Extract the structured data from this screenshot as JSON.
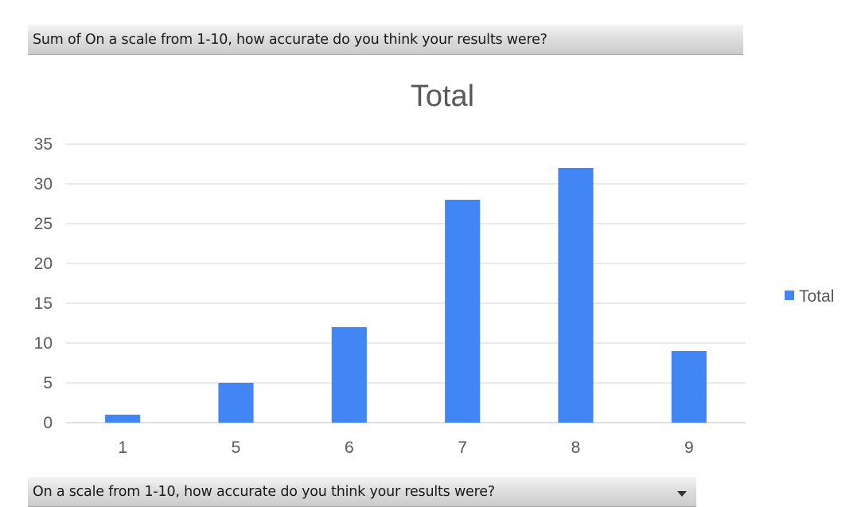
{
  "pivot": {
    "values_field_label": "Sum of On a scale from 1-10, how accurate do you think your results were?",
    "axis_field_label": "On a scale from 1-10, how accurate do you think your results were?"
  },
  "chart_data": {
    "type": "bar",
    "title": "Total",
    "categories": [
      "1",
      "5",
      "6",
      "7",
      "8",
      "9"
    ],
    "series": [
      {
        "name": "Total",
        "values": [
          1,
          5,
          12,
          28,
          32,
          9
        ],
        "color": "#4285F4"
      }
    ],
    "ylim": [
      0,
      35
    ],
    "yticks": [
      0,
      5,
      10,
      15,
      20,
      25,
      30,
      35
    ],
    "xlabel": "",
    "ylabel": "",
    "grid": true,
    "legend_position": "right"
  }
}
